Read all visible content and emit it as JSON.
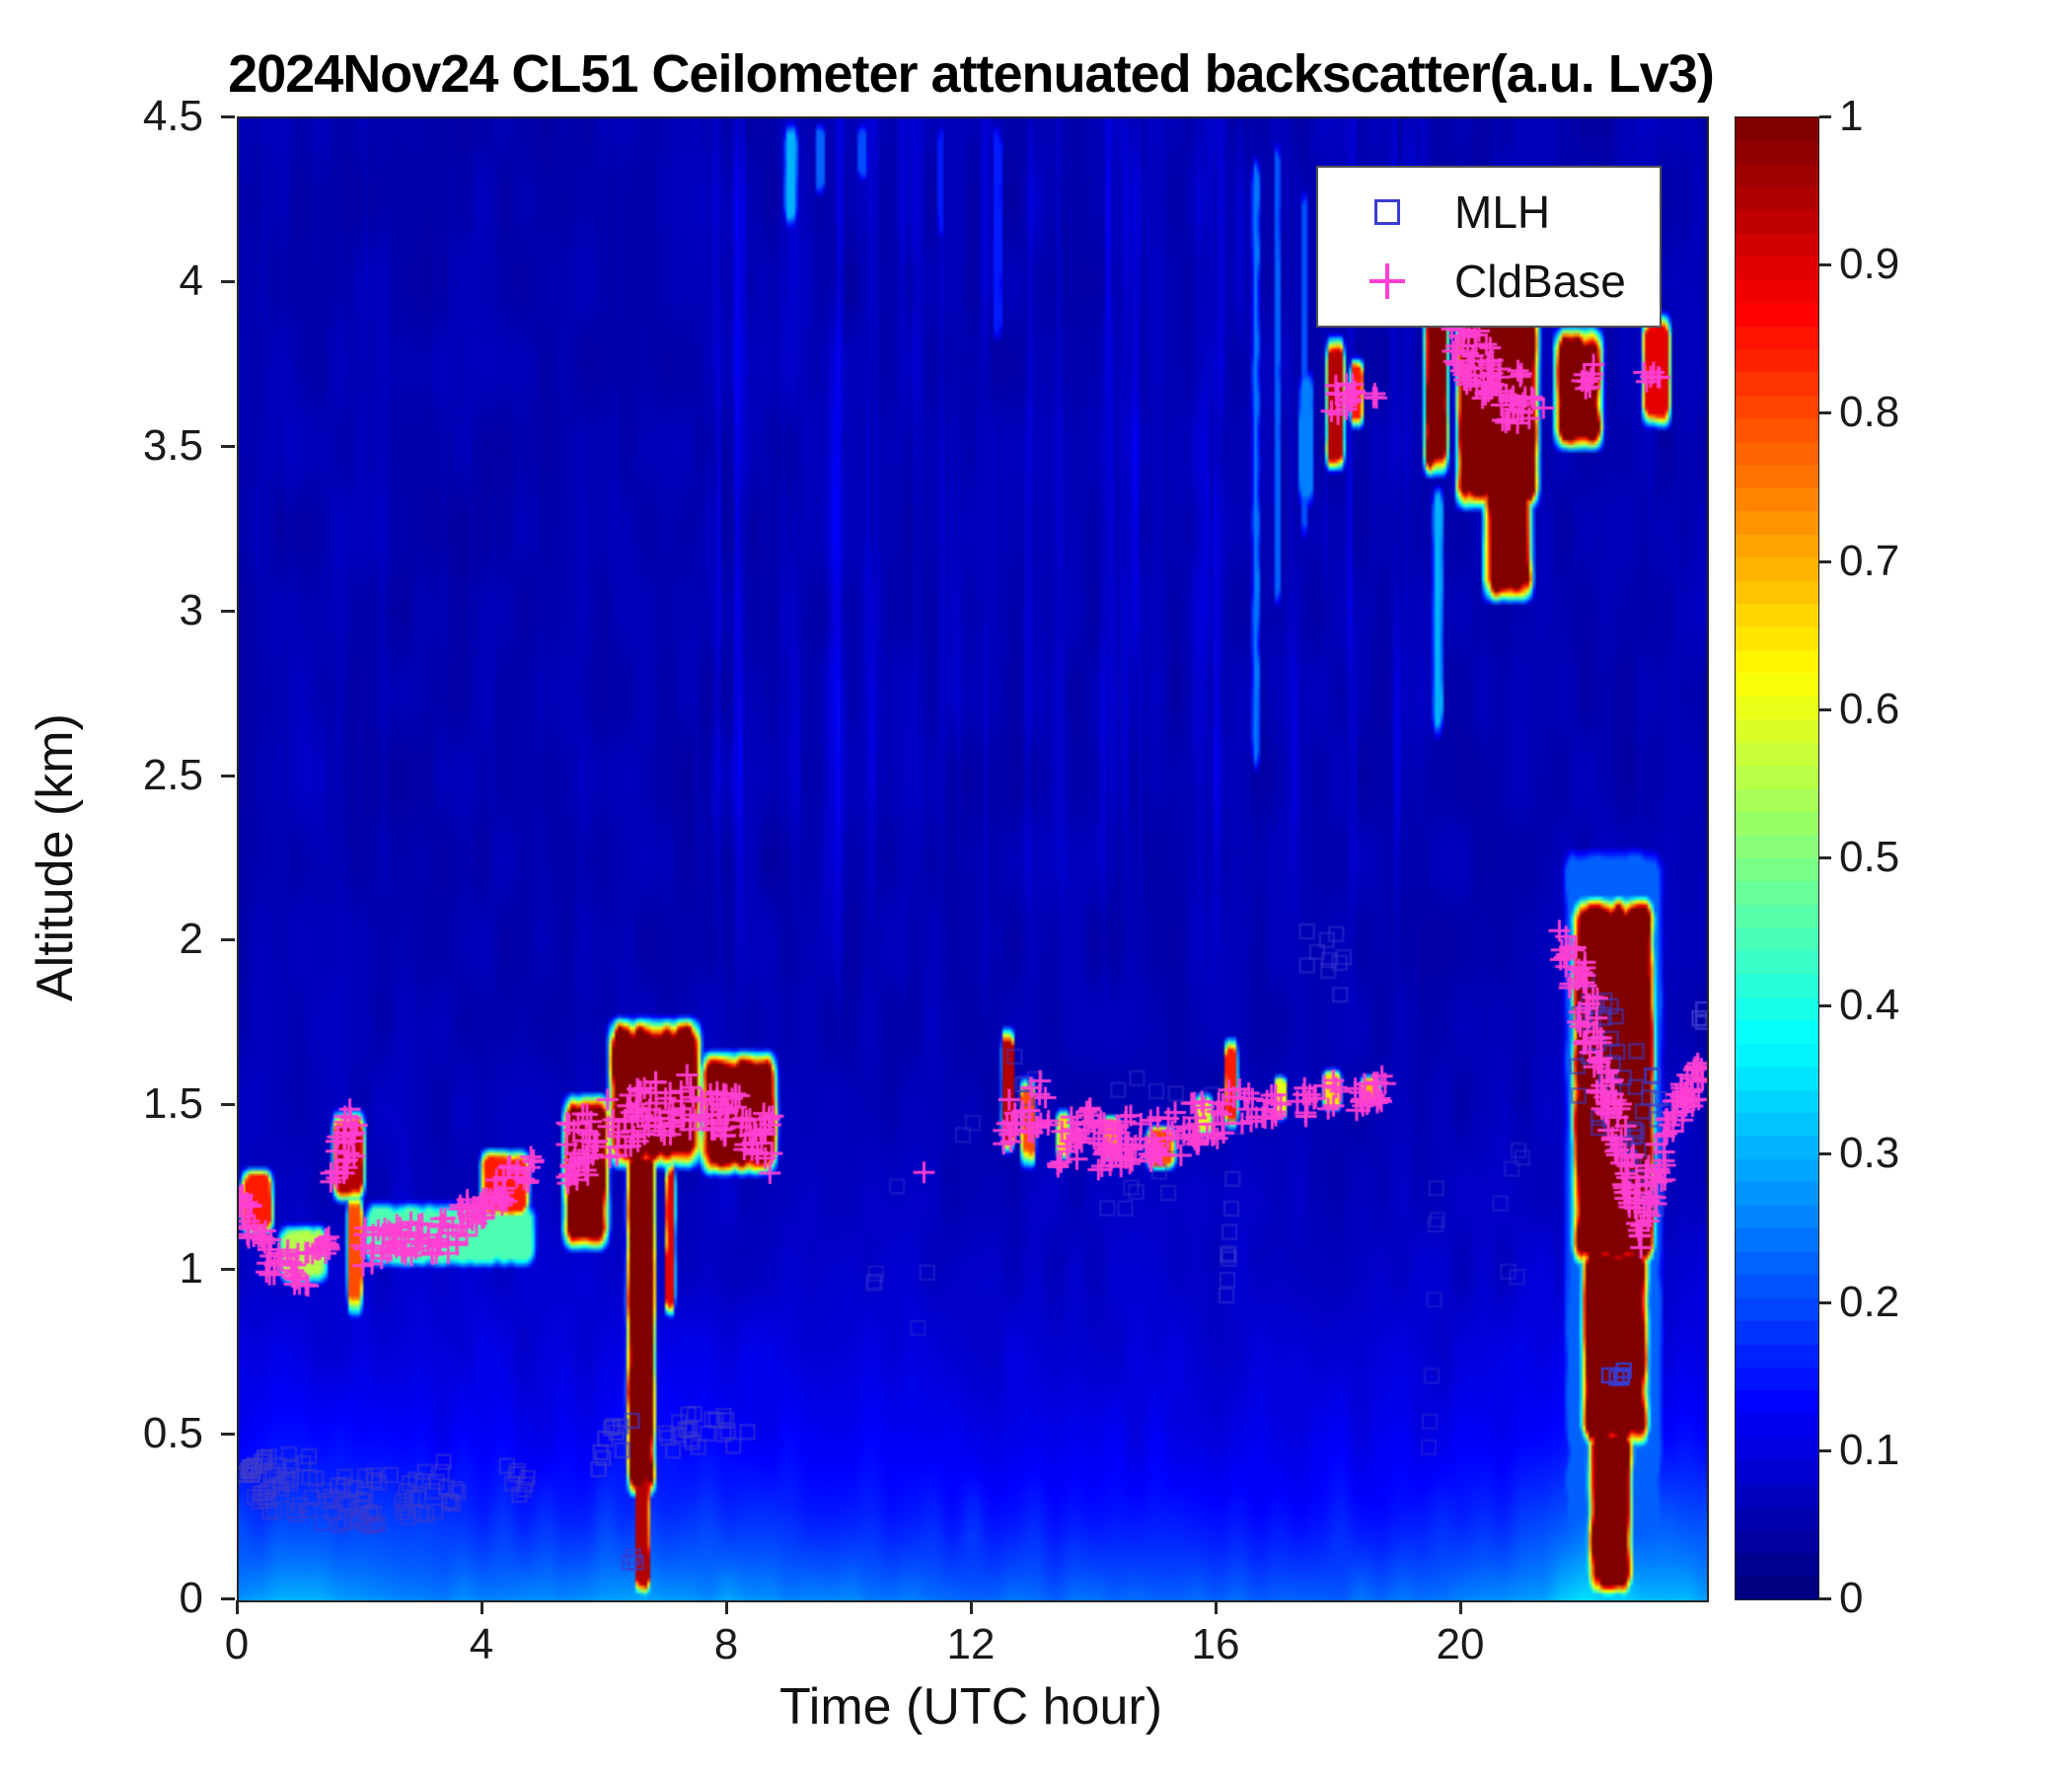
{
  "chart_data": {
    "type": "heatmap",
    "title": "2024Nov24 CL51 Ceilometer attenuated backscatter(a.u. Lv3)",
    "xlabel": "Time (UTC hour)",
    "ylabel": "Altitude (km)",
    "xlim": [
      0,
      24
    ],
    "ylim": [
      0,
      4.5
    ],
    "xtick_values": [
      0,
      4,
      8,
      12,
      16,
      20
    ],
    "xtick_labels": [
      "0",
      "4",
      "8",
      "12",
      "16",
      "20"
    ],
    "ytick_values": [
      0,
      0.5,
      1,
      1.5,
      2,
      2.5,
      3,
      3.5,
      4,
      4.5
    ],
    "ytick_labels": [
      "0",
      "0.5",
      "1",
      "1.5",
      "2",
      "2.5",
      "3",
      "3.5",
      "4",
      "4.5"
    ],
    "colormap": "jet",
    "colorbar": {
      "min": 0,
      "max": 1,
      "tick_values": [
        0,
        0.1,
        0.2,
        0.3,
        0.4,
        0.5,
        0.6,
        0.7,
        0.8,
        0.9,
        1
      ],
      "tick_labels": [
        "0",
        "0.1",
        "0.2",
        "0.3",
        "0.4",
        "0.5",
        "0.6",
        "0.7",
        "0.8",
        "0.9",
        "1"
      ]
    },
    "legend": [
      {
        "label": "MLH",
        "marker": "open-square",
        "color": "#3b3bcf"
      },
      {
        "label": "CldBase",
        "marker": "plus",
        "color": "#ff3fd3"
      }
    ],
    "background_value": 0.04,
    "surface_layer": {
      "hours": [
        0,
        1,
        2,
        3,
        5,
        6,
        7,
        9,
        11,
        13,
        15,
        17,
        19,
        20,
        21,
        22,
        23,
        24
      ],
      "amps": [
        0.21,
        0.22,
        0.2,
        0.19,
        0.18,
        0.2,
        0.21,
        0.19,
        0.17,
        0.16,
        0.15,
        0.15,
        0.16,
        0.17,
        0.2,
        0.26,
        0.25,
        0.22
      ],
      "scale_km": 0.52,
      "near_surface_amp": 0.03,
      "near_surface_scale_km": 0.15
    },
    "cloud_features": [
      [
        0.0,
        0.6,
        1.1,
        1.32,
        0.85
      ],
      [
        0.6,
        1.5,
        0.95,
        1.15,
        0.55
      ],
      [
        1.5,
        2.1,
        1.2,
        1.5,
        0.95
      ],
      [
        1.75,
        2.05,
        0.85,
        1.25,
        0.8
      ],
      [
        2.0,
        4.9,
        1.0,
        1.22,
        0.45
      ],
      [
        3.9,
        4.8,
        1.15,
        1.38,
        0.85
      ],
      [
        5.25,
        6.1,
        1.05,
        1.55,
        1.0
      ],
      [
        6.0,
        7.6,
        1.3,
        1.78,
        1.0
      ],
      [
        7.5,
        8.85,
        1.28,
        1.68,
        1.0
      ],
      [
        6.3,
        6.85,
        0.3,
        1.4,
        1.0
      ],
      [
        6.45,
        6.75,
        0.0,
        0.45,
        0.95
      ],
      [
        6.95,
        7.15,
        0.85,
        1.35,
        0.9
      ],
      [
        12.45,
        12.7,
        1.35,
        1.75,
        0.95
      ],
      [
        12.75,
        13.05,
        1.3,
        1.6,
        0.8
      ],
      [
        13.35,
        13.6,
        1.33,
        1.5,
        0.65
      ],
      [
        14.1,
        14.45,
        1.33,
        1.48,
        0.7
      ],
      [
        14.8,
        15.35,
        1.3,
        1.45,
        0.8
      ],
      [
        15.6,
        15.95,
        1.4,
        1.55,
        0.6
      ],
      [
        16.1,
        16.35,
        1.42,
        1.72,
        0.85
      ],
      [
        16.9,
        17.15,
        1.45,
        1.6,
        0.6
      ],
      [
        17.7,
        18.05,
        1.48,
        1.62,
        0.65
      ],
      [
        18.3,
        18.7,
        1.5,
        1.6,
        0.7
      ],
      [
        17.75,
        18.1,
        3.42,
        3.85,
        0.95
      ],
      [
        18.15,
        18.4,
        3.55,
        3.78,
        0.85
      ],
      [
        17.3,
        17.6,
        3.3,
        3.75,
        0.25
      ],
      [
        19.35,
        19.8,
        3.4,
        3.97,
        1.0
      ],
      [
        19.85,
        21.3,
        3.3,
        3.95,
        1.0
      ],
      [
        20.3,
        21.2,
        3.02,
        3.5,
        1.0
      ],
      [
        21.45,
        22.35,
        3.48,
        3.88,
        1.0
      ],
      [
        22.9,
        23.45,
        3.55,
        3.92,
        0.9
      ],
      [
        21.75,
        23.2,
        1.0,
        2.15,
        1.0
      ],
      [
        21.9,
        23.1,
        0.45,
        1.1,
        1.0
      ],
      [
        22.0,
        22.85,
        0.0,
        0.55,
        1.0
      ],
      [
        21.6,
        23.35,
        0.0,
        2.3,
        0.22
      ],
      [
        8.9,
        9.15,
        4.15,
        4.5,
        0.3
      ],
      [
        9.4,
        9.6,
        4.25,
        4.5,
        0.22
      ],
      [
        10.1,
        10.3,
        4.3,
        4.5,
        0.2
      ],
      [
        11.4,
        11.55,
        4.1,
        4.5,
        0.15
      ],
      [
        12.3,
        12.5,
        3.8,
        4.5,
        0.15
      ],
      [
        16.55,
        16.7,
        2.5,
        4.4,
        0.25
      ],
      [
        16.9,
        17.05,
        3.0,
        4.45,
        0.22
      ],
      [
        17.35,
        17.5,
        3.2,
        4.3,
        0.2
      ],
      [
        19.5,
        19.7,
        2.6,
        3.4,
        0.3
      ]
    ],
    "mlh_clusters": [
      [
        0.05,
        0.3,
        0.4,
        0.4,
        0.06,
        7,
        0.95
      ],
      [
        0.2,
        1.3,
        0.38,
        0.34,
        0.2,
        40,
        0.55
      ],
      [
        1.3,
        2.4,
        0.32,
        0.3,
        0.18,
        35,
        0.55
      ],
      [
        2.4,
        3.6,
        0.32,
        0.35,
        0.16,
        25,
        0.55
      ],
      [
        4.2,
        4.75,
        0.38,
        0.36,
        0.1,
        8,
        0.55
      ],
      [
        5.85,
        6.5,
        0.45,
        0.48,
        0.14,
        10,
        0.65
      ],
      [
        6.25,
        6.5,
        0.12,
        0.12,
        0.06,
        3,
        0.65
      ],
      [
        6.95,
        8.55,
        0.5,
        0.52,
        0.12,
        22,
        0.55
      ],
      [
        10.3,
        12.3,
        1.0,
        1.2,
        0.7,
        8,
        0.35
      ],
      [
        12.6,
        13.1,
        1.55,
        1.65,
        0.25,
        6,
        0.45
      ],
      [
        13.8,
        16.0,
        1.35,
        1.45,
        0.4,
        14,
        0.4
      ],
      [
        16.12,
        16.3,
        0.85,
        1.5,
        0.1,
        9,
        0.45
      ],
      [
        17.4,
        18.1,
        1.9,
        2.0,
        0.3,
        10,
        0.45
      ],
      [
        19.45,
        19.6,
        0.4,
        1.3,
        0.25,
        7,
        0.35
      ],
      [
        20.6,
        21.1,
        1.0,
        1.3,
        0.4,
        6,
        0.35
      ],
      [
        21.85,
        23.3,
        1.75,
        1.35,
        0.45,
        55,
        0.6
      ],
      [
        22.35,
        22.65,
        0.68,
        0.7,
        0.05,
        6,
        0.95
      ],
      [
        23.8,
        23.95,
        1.75,
        1.78,
        0.05,
        3,
        0.85
      ]
    ],
    "cldbase_clusters": [
      [
        0.02,
        0.45,
        1.18,
        1.12,
        0.12,
        22
      ],
      [
        0.45,
        1.15,
        1.05,
        1.0,
        0.12,
        28
      ],
      [
        1.15,
        1.5,
        1.02,
        1.08,
        0.08,
        12
      ],
      [
        1.5,
        1.95,
        1.32,
        1.45,
        0.18,
        26
      ],
      [
        1.95,
        3.35,
        1.07,
        1.1,
        0.12,
        55
      ],
      [
        3.35,
        4.45,
        1.1,
        1.28,
        0.12,
        45
      ],
      [
        4.45,
        4.85,
        1.27,
        1.32,
        0.08,
        10
      ],
      [
        5.35,
        6.3,
        1.35,
        1.45,
        0.2,
        40
      ],
      [
        6.3,
        7.35,
        1.45,
        1.52,
        0.18,
        45
      ],
      [
        7.35,
        8.3,
        1.5,
        1.45,
        0.16,
        40
      ],
      [
        8.25,
        8.75,
        1.42,
        1.38,
        0.18,
        22
      ],
      [
        11.15,
        11.3,
        1.3,
        1.3,
        0.02,
        1
      ],
      [
        12.5,
        13.25,
        1.45,
        1.52,
        0.15,
        25
      ],
      [
        13.35,
        14.05,
        1.38,
        1.44,
        0.14,
        25
      ],
      [
        14.05,
        15.45,
        1.38,
        1.42,
        0.16,
        60
      ],
      [
        15.45,
        16.45,
        1.44,
        1.5,
        0.14,
        30
      ],
      [
        16.45,
        17.15,
        1.5,
        1.52,
        0.1,
        16
      ],
      [
        17.3,
        18.05,
        1.5,
        1.55,
        0.1,
        15
      ],
      [
        18.2,
        18.75,
        1.52,
        1.56,
        0.08,
        18
      ],
      [
        17.85,
        18.25,
        3.63,
        3.68,
        0.1,
        16
      ],
      [
        18.5,
        18.6,
        3.66,
        3.66,
        0.03,
        3
      ],
      [
        19.75,
        20.65,
        3.88,
        3.65,
        0.22,
        55
      ],
      [
        20.65,
        21.35,
        3.64,
        3.6,
        0.12,
        20
      ],
      [
        20.9,
        21.05,
        3.73,
        3.73,
        0.03,
        3
      ],
      [
        21.9,
        22.2,
        3.68,
        3.73,
        0.08,
        8
      ],
      [
        22.95,
        23.3,
        3.72,
        3.74,
        0.05,
        6
      ],
      [
        21.55,
        21.8,
        2.0,
        1.9,
        0.15,
        10
      ],
      [
        21.8,
        22.35,
        1.95,
        1.6,
        0.3,
        40
      ],
      [
        22.35,
        22.95,
        1.55,
        1.15,
        0.25,
        50
      ],
      [
        22.95,
        23.4,
        1.18,
        1.42,
        0.2,
        28
      ],
      [
        23.4,
        23.97,
        1.45,
        1.62,
        0.14,
        32
      ]
    ]
  }
}
